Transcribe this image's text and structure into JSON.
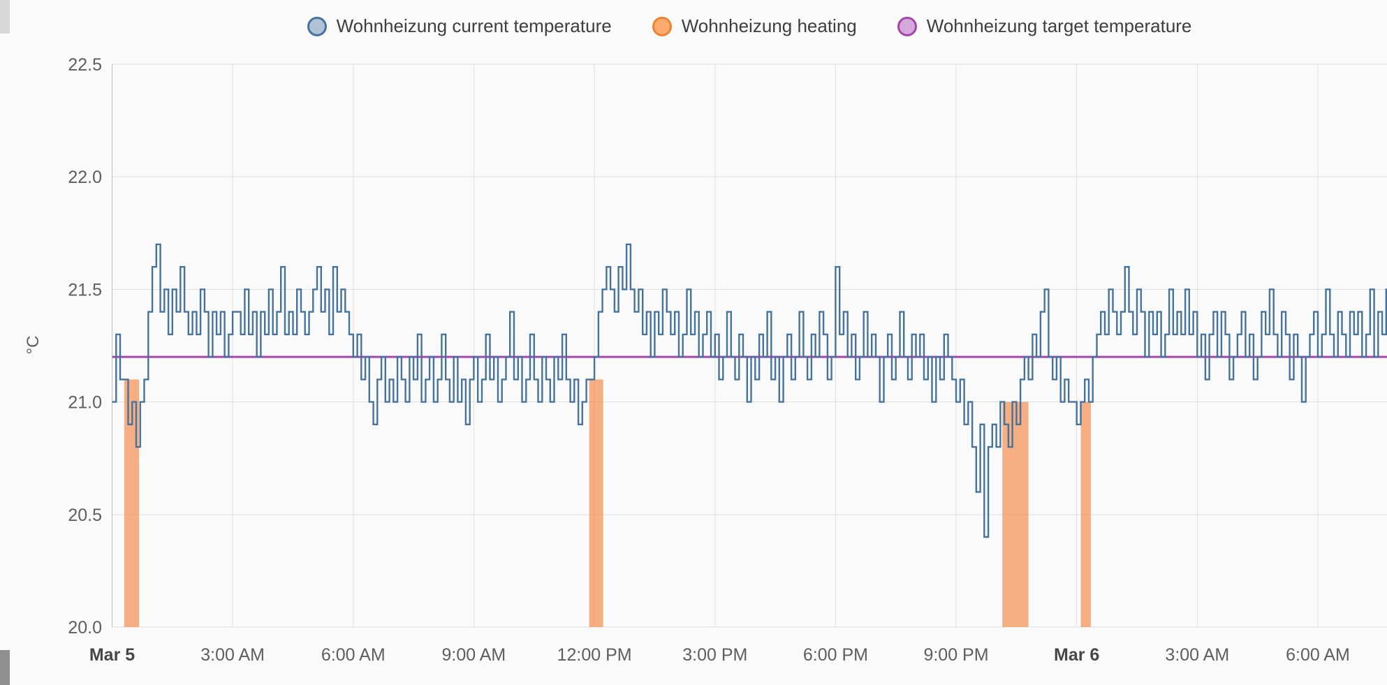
{
  "y_axis": {
    "title": "°C",
    "tick_labels": [
      "22.5",
      "22.0",
      "21.5",
      "21.0",
      "20.5",
      "20.0"
    ]
  },
  "x_axis": {
    "tick_labels": [
      "Mar 5",
      "3:00 AM",
      "6:00 AM",
      "9:00 AM",
      "12:00 PM",
      "3:00 PM",
      "6:00 PM",
      "9:00 PM",
      "Mar 6",
      "3:00 AM",
      "6:00 AM"
    ]
  },
  "chart_data": {
    "type": "line",
    "title": "",
    "ylabel": "°C",
    "xlabel": "",
    "ylim": [
      20.0,
      22.5
    ],
    "x_unit": "hours since Mar 5 00:00",
    "x_range": [
      0,
      31.7
    ],
    "grid": true,
    "legend_position": "top",
    "y_ticks": [
      22.5,
      22.0,
      21.5,
      21.0,
      20.5,
      20.0
    ],
    "x_ticks": [
      {
        "t": 0,
        "label": "Mar 5",
        "bold": true
      },
      {
        "t": 3,
        "label": "3:00 AM",
        "bold": false
      },
      {
        "t": 6,
        "label": "6:00 AM",
        "bold": false
      },
      {
        "t": 9,
        "label": "9:00 AM",
        "bold": false
      },
      {
        "t": 12,
        "label": "12:00 PM",
        "bold": false
      },
      {
        "t": 15,
        "label": "3:00 PM",
        "bold": false
      },
      {
        "t": 18,
        "label": "6:00 PM",
        "bold": false
      },
      {
        "t": 21,
        "label": "9:00 PM",
        "bold": false
      },
      {
        "t": 24,
        "label": "Mar 6",
        "bold": true
      },
      {
        "t": 27,
        "label": "3:00 AM",
        "bold": false
      },
      {
        "t": 30,
        "label": "6:00 AM",
        "bold": false
      }
    ],
    "series": [
      {
        "name": "Wohnheizung current temperature",
        "render": "step",
        "color": "#44739e",
        "marker_fill": "#aec3d6",
        "marker_stroke": "#44739e",
        "x_start": 0,
        "x_step": 0.1,
        "values": [
          21.0,
          21.3,
          21.1,
          21.1,
          20.9,
          21.0,
          20.8,
          21.0,
          21.1,
          21.4,
          21.6,
          21.7,
          21.4,
          21.5,
          21.3,
          21.5,
          21.4,
          21.6,
          21.4,
          21.3,
          21.4,
          21.3,
          21.5,
          21.4,
          21.2,
          21.4,
          21.3,
          21.4,
          21.2,
          21.3,
          21.4,
          21.4,
          21.3,
          21.5,
          21.3,
          21.4,
          21.2,
          21.4,
          21.3,
          21.5,
          21.3,
          21.4,
          21.6,
          21.3,
          21.4,
          21.3,
          21.5,
          21.4,
          21.3,
          21.4,
          21.5,
          21.6,
          21.4,
          21.5,
          21.3,
          21.6,
          21.4,
          21.5,
          21.4,
          21.3,
          21.2,
          21.3,
          21.1,
          21.2,
          21.0,
          20.9,
          21.1,
          21.2,
          21.0,
          21.1,
          21.0,
          21.2,
          21.1,
          21.0,
          21.2,
          21.1,
          21.3,
          21.0,
          21.1,
          21.2,
          21.0,
          21.1,
          21.3,
          21.1,
          21.0,
          21.2,
          21.0,
          21.1,
          20.9,
          21.1,
          21.2,
          21.0,
          21.1,
          21.3,
          21.1,
          21.2,
          21.0,
          21.1,
          21.2,
          21.4,
          21.1,
          21.2,
          21.0,
          21.1,
          21.3,
          21.1,
          21.0,
          21.2,
          21.1,
          21.0,
          21.2,
          21.1,
          21.3,
          21.1,
          21.0,
          21.1,
          20.9,
          21.0,
          21.1,
          21.1,
          21.2,
          21.4,
          21.5,
          21.6,
          21.5,
          21.4,
          21.6,
          21.5,
          21.7,
          21.5,
          21.4,
          21.5,
          21.3,
          21.4,
          21.2,
          21.4,
          21.3,
          21.5,
          21.4,
          21.3,
          21.4,
          21.2,
          21.3,
          21.5,
          21.3,
          21.4,
          21.2,
          21.3,
          21.4,
          21.2,
          21.3,
          21.1,
          21.2,
          21.4,
          21.2,
          21.1,
          21.3,
          21.2,
          21.0,
          21.2,
          21.1,
          21.3,
          21.2,
          21.4,
          21.1,
          21.2,
          21.0,
          21.2,
          21.3,
          21.1,
          21.2,
          21.4,
          21.2,
          21.1,
          21.3,
          21.2,
          21.4,
          21.3,
          21.1,
          21.2,
          21.6,
          21.3,
          21.4,
          21.2,
          21.3,
          21.1,
          21.2,
          21.4,
          21.2,
          21.3,
          21.2,
          21.0,
          21.2,
          21.3,
          21.1,
          21.2,
          21.4,
          21.2,
          21.1,
          21.3,
          21.2,
          21.3,
          21.1,
          21.2,
          21.0,
          21.2,
          21.1,
          21.3,
          21.2,
          21.1,
          21.0,
          21.1,
          20.9,
          21.0,
          20.8,
          20.6,
          20.9,
          20.4,
          20.8,
          20.9,
          20.8,
          21.0,
          20.9,
          20.8,
          21.0,
          20.9,
          21.1,
          21.2,
          21.1,
          21.3,
          21.2,
          21.4,
          21.5,
          21.2,
          21.1,
          21.2,
          21.0,
          21.1,
          21.0,
          21.0,
          20.9,
          21.0,
          21.1,
          21.0,
          21.2,
          21.3,
          21.4,
          21.3,
          21.5,
          21.4,
          21.3,
          21.4,
          21.6,
          21.4,
          21.3,
          21.5,
          21.4,
          21.2,
          21.4,
          21.3,
          21.4,
          21.2,
          21.3,
          21.5,
          21.3,
          21.4,
          21.3,
          21.5,
          21.3,
          21.4,
          21.2,
          21.3,
          21.1,
          21.3,
          21.4,
          21.2,
          21.4,
          21.3,
          21.1,
          21.2,
          21.3,
          21.4,
          21.2,
          21.3,
          21.1,
          21.2,
          21.4,
          21.3,
          21.5,
          21.3,
          21.2,
          21.4,
          21.3,
          21.1,
          21.3,
          21.2,
          21.0,
          21.2,
          21.3,
          21.4,
          21.2,
          21.3,
          21.5,
          21.3,
          21.2,
          21.4,
          21.3,
          21.2,
          21.4,
          21.3,
          21.4,
          21.2,
          21.3,
          21.5,
          21.2,
          21.4,
          21.3,
          21.5
        ]
      },
      {
        "name": "Wohnheizung heating",
        "render": "bars",
        "color": "rgba(245,124,51,0.6)",
        "marker_fill": "#fcab70",
        "marker_stroke": "#ee8231",
        "bars": [
          {
            "start": 0.3,
            "end": 0.67,
            "top": 21.1
          },
          {
            "start": 11.87,
            "end": 12.22,
            "top": 21.1
          },
          {
            "start": 22.15,
            "end": 22.8,
            "top": 21.0
          },
          {
            "start": 24.1,
            "end": 24.35,
            "top": 21.0
          }
        ]
      },
      {
        "name": "Wohnheizung target temperature",
        "render": "hline",
        "color": "#a446ab",
        "marker_fill": "#d4a9d9",
        "marker_stroke": "#a446ab",
        "value": 21.2
      }
    ]
  }
}
